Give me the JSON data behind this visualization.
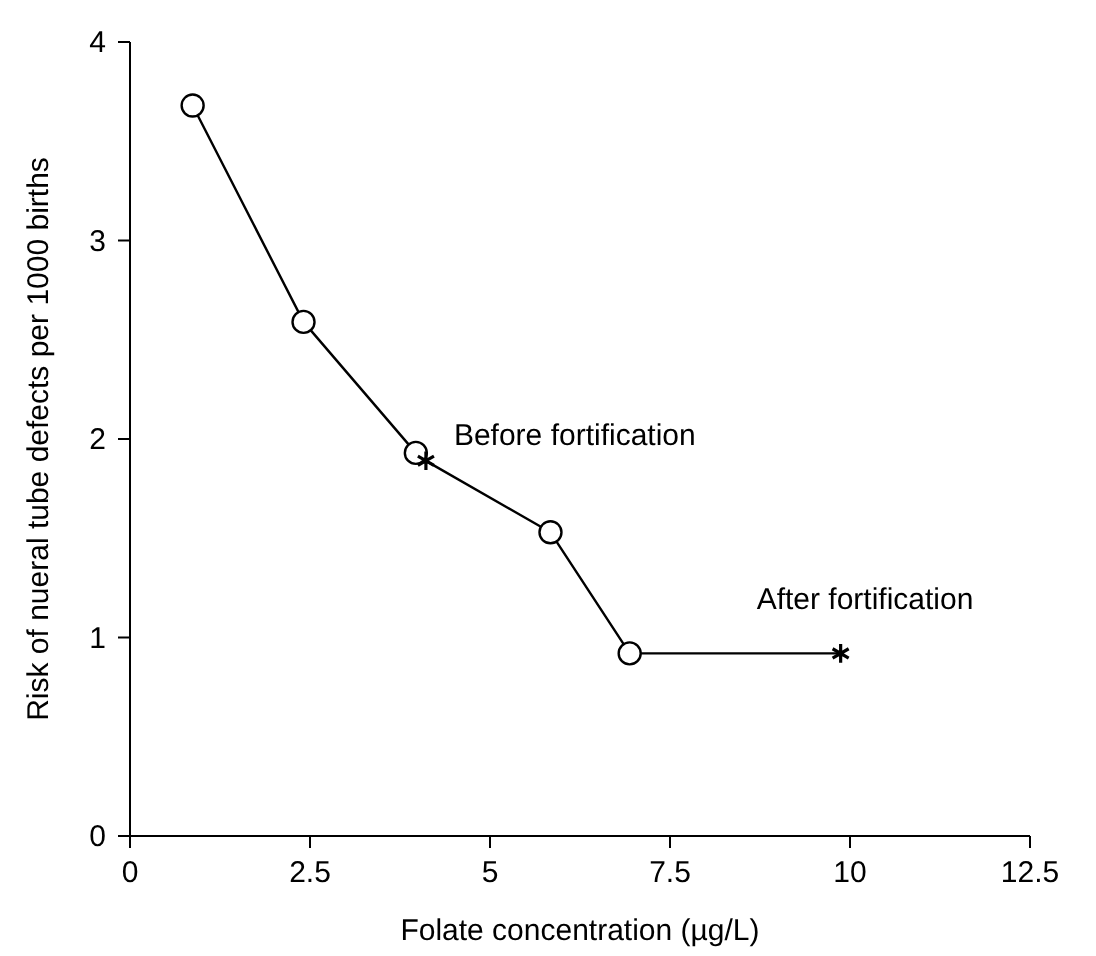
{
  "chart_data": {
    "type": "line",
    "xlabel": "Folate concentration (µg/L)",
    "ylabel": "Risk of nueral tube defects per 1000 births",
    "xlim": [
      0,
      12.5
    ],
    "xticks": [
      0,
      2.5,
      5,
      7.5,
      10,
      12.5
    ],
    "ylim": [
      0,
      4
    ],
    "yticks": [
      0,
      1,
      2,
      3,
      4
    ],
    "grid": false,
    "series": [
      {
        "color": "#000000",
        "marker": "none",
        "x": [
          0.87,
          2.41,
          3.97,
          4.11,
          5.84,
          6.94,
          9.87
        ],
        "values": [
          3.68,
          2.59,
          1.93,
          1.89,
          1.53,
          0.92,
          0.92
        ]
      },
      {
        "type": "scatter",
        "color": "#000000",
        "marker": "circle",
        "x": [
          0.87,
          2.41,
          3.97,
          5.84,
          6.94
        ],
        "values": [
          3.68,
          2.59,
          1.93,
          1.53,
          0.92
        ]
      },
      {
        "type": "scatter",
        "color": "#000000",
        "marker": "cross",
        "x": [
          4.11,
          9.87
        ],
        "values": [
          1.89,
          0.92
        ]
      }
    ],
    "annotations": [
      {
        "text": "Before fortification",
        "x": 4.11,
        "y": 1.89
      },
      {
        "text": "After fortification",
        "x": 9.87,
        "y": 0.92
      }
    ]
  }
}
